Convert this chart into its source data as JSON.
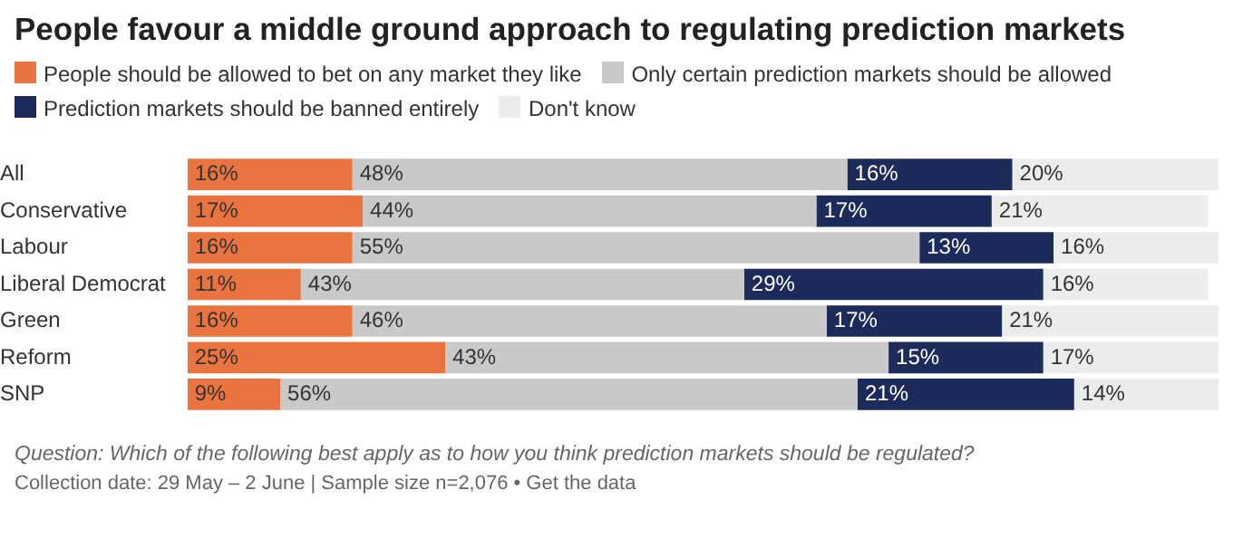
{
  "chart_data": {
    "type": "bar",
    "orientation": "horizontal",
    "stacked": true,
    "title": "People favour a middle ground approach to regulating prediction markets",
    "categories": [
      "All",
      "Conservative",
      "Labour",
      "Liberal Democrat",
      "Green",
      "Reform",
      "SNP"
    ],
    "series": [
      {
        "name": "People should be allowed to bet on any market they like",
        "color": "#ea7440",
        "values": [
          16,
          17,
          16,
          11,
          16,
          25,
          9
        ],
        "value_labels": [
          "16%",
          "17%",
          "16%",
          "11%",
          "16%",
          "25%",
          "9%"
        ]
      },
      {
        "name": "Only certain prediction markets should be allowed",
        "color": "#c9c9c9",
        "values": [
          48,
          44,
          55,
          43,
          46,
          43,
          56
        ],
        "value_labels": [
          "48%",
          "44%",
          "55%",
          "43%",
          "46%",
          "43%",
          "56%"
        ]
      },
      {
        "name": "Prediction markets should be banned entirely",
        "color": "#1d2b5a",
        "values": [
          16,
          17,
          13,
          29,
          17,
          15,
          21
        ],
        "value_labels": [
          "16%",
          "17%",
          "13%",
          "29%",
          "17%",
          "15%",
          "21%"
        ]
      },
      {
        "name": "Don't know",
        "color": "#ececec",
        "values": [
          20,
          21,
          16,
          16,
          21,
          17,
          14
        ],
        "value_labels": [
          "20%",
          "21%",
          "16%",
          "16%",
          "21%",
          "17%",
          "14%"
        ]
      }
    ],
    "xlim": [
      0,
      100
    ],
    "tick_labels": "y",
    "grid": false,
    "legend": "top",
    "annotations": [
      "Question: Which of the following best apply as to how you think prediction markets should be regulated?",
      "Collection date: 29 May – 2 June | Sample size n=2,076 • Get the data"
    ]
  }
}
